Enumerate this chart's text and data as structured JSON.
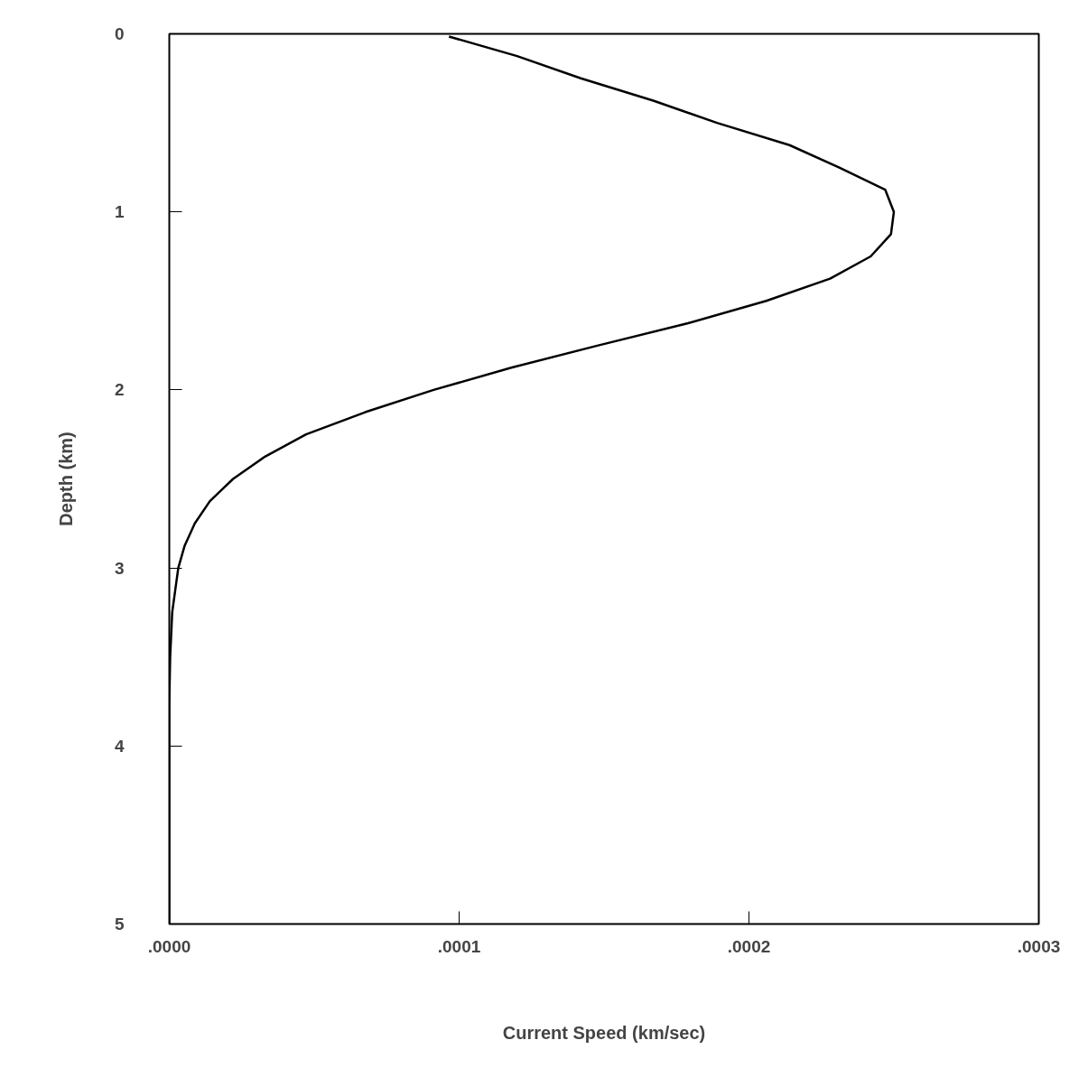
{
  "chart_data": {
    "type": "line",
    "xlabel": "Current Speed (km/sec)",
    "ylabel": "Depth (km)",
    "x": [
      9.65e-05,
      0.00012,
      0.000142,
      0.000167,
      0.000189,
      0.000214,
      0.000231,
      0.000247,
      0.00025,
      0.000249,
      0.000242,
      0.000228,
      0.000206,
      0.000179,
      0.000148,
      0.000118,
      9.12e-05,
      6.76e-05,
      4.72e-05,
      3.3e-05,
      2.2e-05,
      1.4e-05,
      8.8e-06,
      5.3e-06,
      3.1e-06,
      1e-06,
      3e-07,
      0.0,
      0.0,
      0.0
    ],
    "values": [
      0.015,
      0.125,
      0.25,
      0.375,
      0.5,
      0.625,
      0.75,
      0.875,
      1.0,
      1.125,
      1.25,
      1.375,
      1.5,
      1.625,
      1.75,
      1.875,
      2.0,
      2.125,
      2.25,
      2.375,
      2.5,
      2.625,
      2.75,
      2.875,
      3.0,
      3.25,
      3.5,
      3.75,
      4.5,
      5.0
    ],
    "color": "#000000",
    "line_style": "solid",
    "marker": "none",
    "xlim": [
      0,
      0.0003
    ],
    "xticks": [
      {
        "value": 0,
        "label": ".0000"
      },
      {
        "value": 0.0001,
        "label": ".0001"
      },
      {
        "value": 0.0002,
        "label": ".0002"
      },
      {
        "value": 0.0003,
        "label": ".0003"
      }
    ],
    "ylim": [
      5,
      0
    ],
    "yticks": [
      0,
      1,
      2,
      3,
      4,
      5
    ],
    "grid": false
  }
}
